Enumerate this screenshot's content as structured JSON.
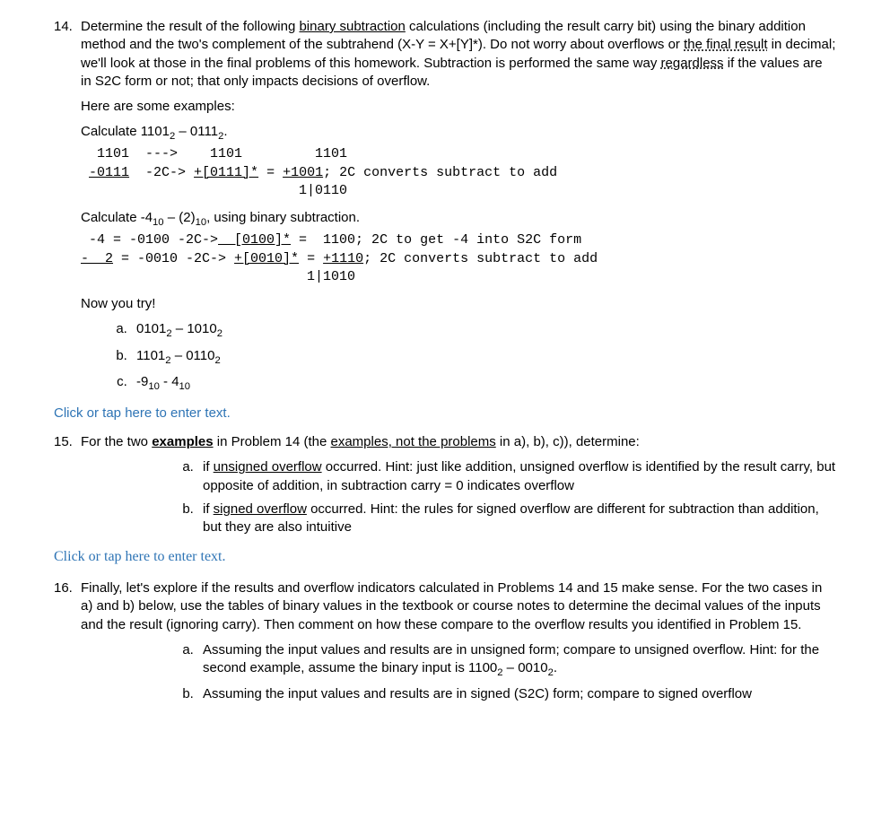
{
  "p14": {
    "num": "14.",
    "intro_pre": "Determine the result of the following ",
    "intro_u1": "binary subtraction",
    "intro_mid1": " calculations (including the result carry bit) using the binary addition method and the two's complement of the subtrahend (X-Y = X+[Y]*). Do not worry about overflows or ",
    "intro_u2": "the final result",
    "intro_mid2": " in decimal; we'll look at those in the final problems of this homework. Subtraction is performed the same way ",
    "intro_u3": "regardless",
    "intro_end": " if the values are in S2C form or not; that only impacts decisions of overflow.",
    "examples_label": "Here are some examples:",
    "ex1_title_pre": "Calculate 1101",
    "ex1_title_sub1": "2",
    "ex1_title_mid": " – 0111",
    "ex1_title_sub2": "2",
    "ex1_title_end": ".",
    "ex1_l1": "  1101  --->    1101         1101",
    "ex1_l2a": " ",
    "ex1_l2u": "-0111",
    "ex1_l2b": "  -2C-> ",
    "ex1_l2u2": "+[0111]*",
    "ex1_l2c": " = ",
    "ex1_l2u3": "+1001",
    "ex1_l2d": "; 2C converts subtract to add",
    "ex1_l3": "                           1|0110",
    "ex2_title_pre": "Calculate -4",
    "ex2_title_sub1": "10",
    "ex2_title_mid": " – (2)",
    "ex2_title_sub2": "10",
    "ex2_title_end": ", using binary subtraction.",
    "ex2_l1a": " -4 = -0100 -2C->",
    "ex2_l1u": "  [0100]*",
    "ex2_l1b": " =  1100; 2C to get -4 into S2C form",
    "ex2_l2a": "",
    "ex2_l2u0": "-  2",
    "ex2_l2b": " = -0010 -2C-> ",
    "ex2_l2u": "+[0010]*",
    "ex2_l2c": " = ",
    "ex2_l2u2": "+1110",
    "ex2_l2d": "; 2C converts subtract to add",
    "ex2_l3": "                            1|1010",
    "try_label": "Now you try!",
    "a_pre": "0101",
    "a_sub1": "2",
    "a_mid": " – 1010",
    "a_sub2": "2",
    "b_pre": "1101",
    "b_sub1": "2",
    "b_mid": " – 0110",
    "b_sub2": "2",
    "c_pre": "-9",
    "c_sub1": "10",
    "c_mid": " - 4",
    "c_sub2": "10"
  },
  "click1": "Click or tap here to enter text.",
  "p15": {
    "num": "15.",
    "intro_pre": "For the two ",
    "intro_u1": "examples",
    "intro_mid": " in Problem 14 (the ",
    "intro_u2": "examples, not the problems",
    "intro_end": " in a), b), c)), determine:",
    "a_pre": "if ",
    "a_u": "unsigned overflow",
    "a_rest": " occurred. Hint: just like addition, unsigned overflow is identified by the result carry, but opposite of addition, in subtraction carry = 0 indicates overflow",
    "b_pre": "if ",
    "b_u": "signed overflow",
    "b_rest": " occurred. Hint: the rules for signed overflow are different for subtraction than addition, but they are also intuitive"
  },
  "click2": "Click or tap here to enter text.",
  "p16": {
    "num": "16.",
    "intro": "Finally, let's explore if the results and overflow indicators calculated in Problems 14 and 15 make sense. For the two cases in a) and b) below, use the tables of binary values in the textbook or course notes to determine the decimal values of the inputs and the result (ignoring carry). Then comment on how these compare to the overflow results you identified in Problem 15.",
    "a_pre": "Assuming the input values and results are in unsigned form; compare to unsigned overflow. Hint: for the second example, assume the binary input is 1100",
    "a_sub1": "2",
    "a_mid": " – 0010",
    "a_sub2": "2",
    "a_end": ".",
    "b": "Assuming the input values and results are in signed (S2C) form; compare to signed overflow"
  }
}
